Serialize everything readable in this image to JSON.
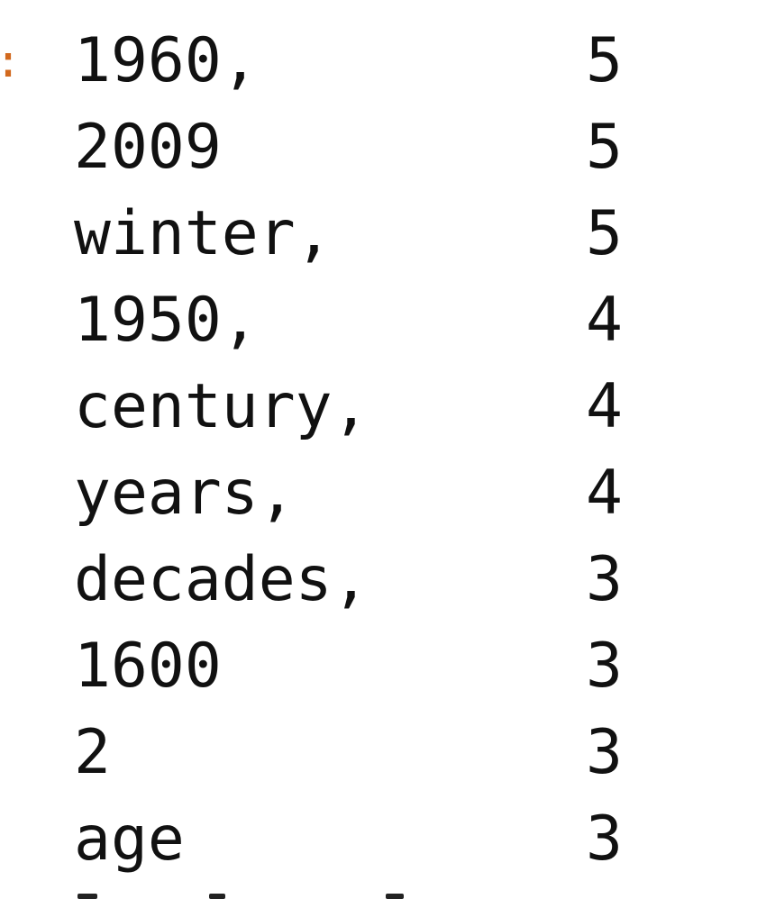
{
  "console": {
    "prompt_marker": ":",
    "rows": [
      {
        "word": "1960,",
        "count": "5"
      },
      {
        "word": "2009",
        "count": "5"
      },
      {
        "word": "winter,",
        "count": "5"
      },
      {
        "word": "1950,",
        "count": "4"
      },
      {
        "word": "century,",
        "count": "4"
      },
      {
        "word": "years,",
        "count": "4"
      },
      {
        "word": "decades,",
        "count": "3"
      },
      {
        "word": "1600",
        "count": "3"
      },
      {
        "word": "2",
        "count": "3"
      },
      {
        "word": "age",
        "count": "3"
      }
    ]
  }
}
